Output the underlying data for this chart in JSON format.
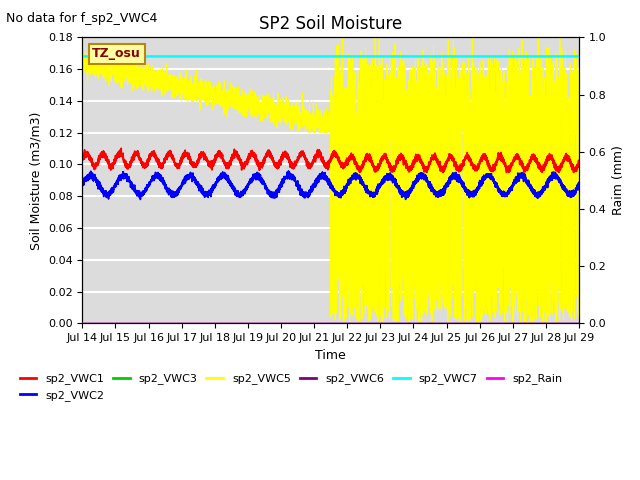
{
  "title": "SP2 Soil Moisture",
  "note": "No data for f_sp2_VWC4",
  "xlabel": "Time",
  "ylabel_left": "Soil Moisture (m3/m3)",
  "ylabel_right": "Raim (mm)",
  "tz_label": "TZ_osu",
  "ylim_left": [
    0.0,
    0.18
  ],
  "ylim_right": [
    0.0,
    1.0
  ],
  "colors": {
    "vwc1": "#ff0000",
    "vwc2": "#0000ff",
    "vwc3": "#00cc00",
    "vwc5": "#ffff00",
    "vwc6": "#800080",
    "vwc7": "#00ffff",
    "rain": "#ff00ff"
  },
  "vwc7_level": 0.168,
  "background_color": "#dcdcdc",
  "legend_labels": [
    "sp2_VWC1",
    "sp2_VWC2",
    "sp2_VWC3",
    "sp2_VWC5",
    "sp2_VWC6",
    "sp2_VWC7",
    "sp2_Rain"
  ],
  "x_tick_labels": [
    "Jul 14",
    "Jul 15",
    "Jul 16",
    "Jul 17",
    "Jul 18",
    "Jul 19",
    "Jul 20",
    "Jul 21",
    "Jul 22",
    "Jul 23",
    "Jul 24",
    "Jul 25",
    "Jul 26",
    "Jul 27",
    "Jul 28",
    "Jul 29"
  ],
  "y_ticks_left": [
    0.0,
    0.02,
    0.04,
    0.06,
    0.08,
    0.1,
    0.12,
    0.14,
    0.16,
    0.18
  ],
  "y_ticks_right": [
    0.0,
    0.2,
    0.4,
    0.6,
    0.8,
    1.0
  ]
}
